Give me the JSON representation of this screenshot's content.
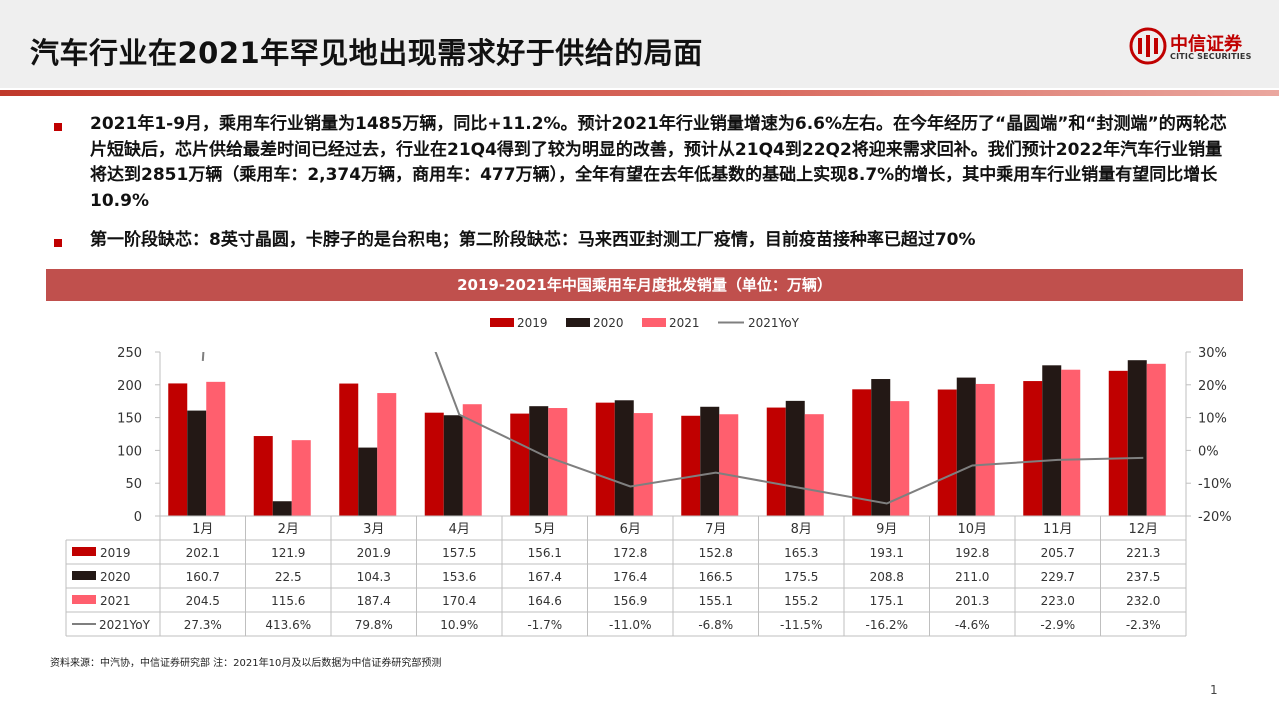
{
  "title": "汽车行业在2021年罕见地出现需求好于供给的局面",
  "logo": {
    "name": "中信证券",
    "sub": "CITIC SECURITIES"
  },
  "bullets": [
    "2021年1-9月，乘用车行业销量为1485万辆，同比+11.2%。预计2021年行业销量增速为6.6%左右。在今年经历了“晶圆端”和“封测端”的两轮芯片短缺后，芯片供给最差时间已经过去，行业在21Q4得到了较为明显的改善，预计从21Q4到22Q2将迎来需求回补。我们预计2022年汽车行业销量将达到2851万辆（乘用车：2,374万辆，商用车：477万辆），全年有望在去年低基数的基础上实现8.7%的增长，其中乘用车行业销量有望同比增长10.9%",
    "第一阶段缺芯：8英寸晶圆，卡脖子的是台积电；第二阶段缺芯：马来西亚封测工厂疫情，目前疫苗接种率已超过70%"
  ],
  "chart_title": "2019-2021年中国乘用车月度批发销量（单位：万辆）",
  "source_note": "资料来源：中汽协，中信证券研究部  注：2021年10月及以后数据为中信证券研究部预测",
  "page_number": "1",
  "chart_data": {
    "type": "bar",
    "categories": [
      "1月",
      "2月",
      "3月",
      "4月",
      "5月",
      "6月",
      "7月",
      "8月",
      "9月",
      "10月",
      "11月",
      "12月"
    ],
    "series": [
      {
        "name": "2019",
        "color": "#c00000",
        "values": [
          202.1,
          121.9,
          201.9,
          157.5,
          156.1,
          172.8,
          152.8,
          165.3,
          193.1,
          192.8,
          205.7,
          221.3
        ]
      },
      {
        "name": "2020",
        "color": "#231815",
        "values": [
          160.7,
          22.5,
          104.3,
          153.6,
          167.4,
          176.4,
          166.5,
          175.5,
          208.8,
          211.0,
          229.7,
          237.5
        ]
      },
      {
        "name": "2021",
        "color": "#ff5f6e",
        "values": [
          204.5,
          115.6,
          187.4,
          170.4,
          164.6,
          156.9,
          155.1,
          155.2,
          175.1,
          201.3,
          223.0,
          232.0
        ]
      }
    ],
    "line_series": {
      "name": "2021YoY",
      "color": "#7f7f7f",
      "values": [
        27.3,
        413.6,
        79.8,
        10.9,
        -1.7,
        -11.0,
        -6.8,
        -11.5,
        -16.2,
        -4.6,
        -2.9,
        -2.3
      ],
      "labels": [
        "27.3%",
        "413.6%",
        "79.8%",
        "10.9%",
        "-1.7%",
        "-11.0%",
        "-6.8%",
        "-11.5%",
        "-16.2%",
        "-4.6%",
        "-2.9%",
        "-2.3%"
      ]
    },
    "y_left": {
      "min": 0,
      "max": 250,
      "ticks": [
        "0",
        "50",
        "100",
        "150",
        "200",
        "250"
      ]
    },
    "y_right": {
      "min": -20,
      "max": 30,
      "ticks": [
        "-20%",
        "-10%",
        "0%",
        "10%",
        "20%",
        "30%"
      ]
    },
    "table_values": {
      "2019": [
        "202.1",
        "121.9",
        "201.9",
        "157.5",
        "156.1",
        "172.8",
        "152.8",
        "165.3",
        "193.1",
        "192.8",
        "205.7",
        "221.3"
      ],
      "2020": [
        "160.7",
        "22.5",
        "104.3",
        "153.6",
        "167.4",
        "176.4",
        "166.5",
        "175.5",
        "208.8",
        "211.0",
        "229.7",
        "237.5"
      ],
      "2021": [
        "204.5",
        "115.6",
        "187.4",
        "170.4",
        "164.6",
        "156.9",
        "155.1",
        "155.2",
        "175.1",
        "201.3",
        "223.0",
        "232.0"
      ]
    },
    "legend": "top-center",
    "grid": false
  }
}
